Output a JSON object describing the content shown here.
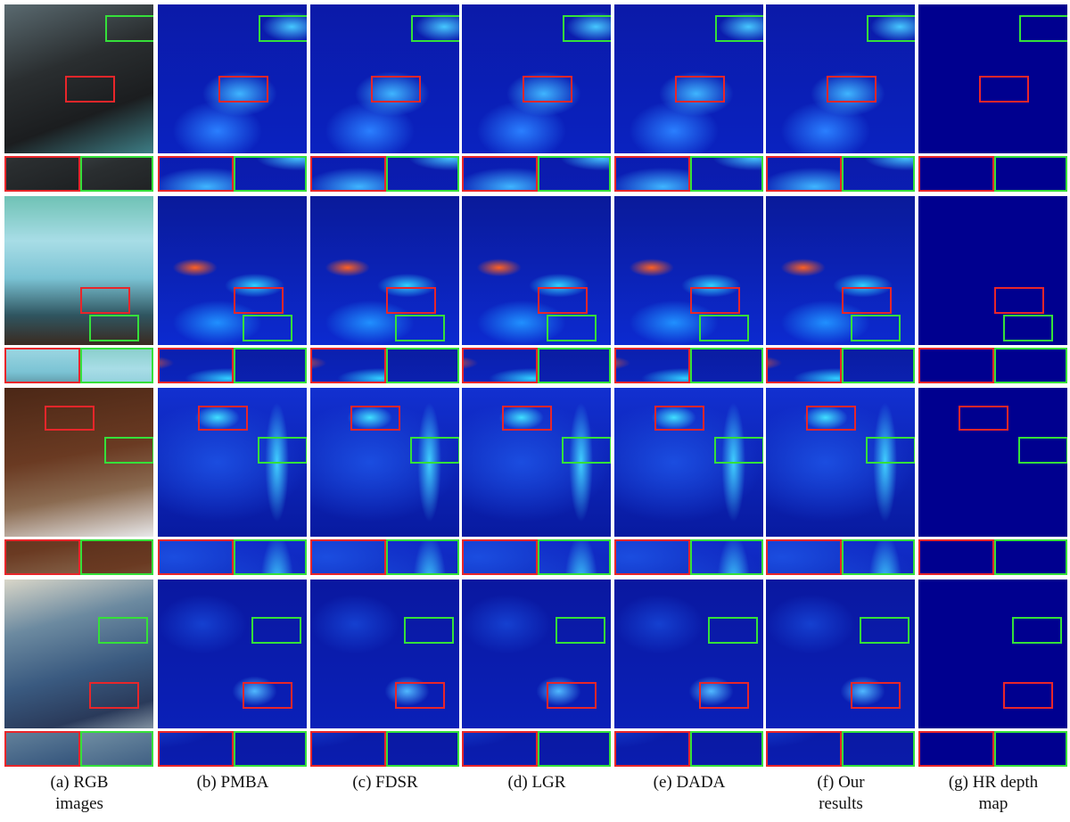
{
  "captions": [
    [
      "(a) RGB",
      "images"
    ],
    [
      "(b) PMBA"
    ],
    [
      "(c) FDSR"
    ],
    [
      "(d) LGR"
    ],
    [
      "(e) DADA"
    ],
    [
      "(f) Our",
      "results"
    ],
    [
      "(g) HR depth",
      "map"
    ]
  ]
}
